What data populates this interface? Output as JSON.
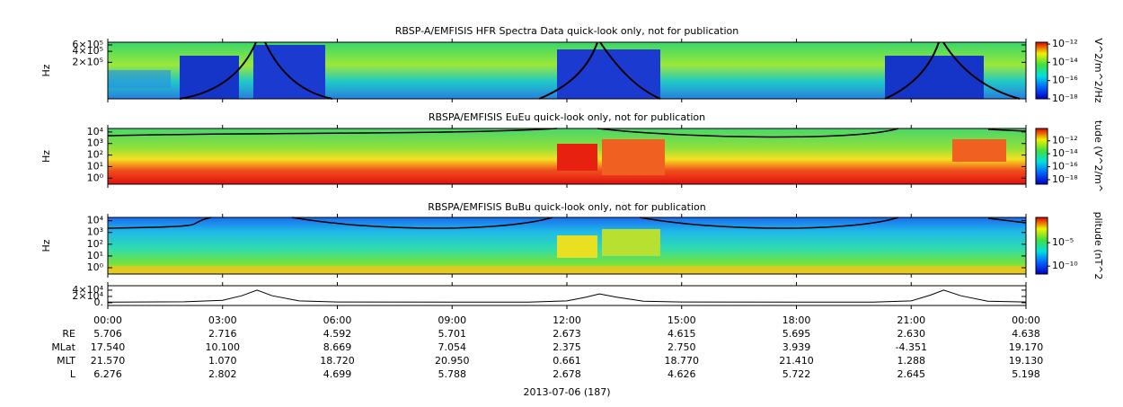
{
  "panels": [
    {
      "title": "RBSP-A/EMFISIS  HFR Spectra Data quick-look only, not for publication",
      "ylabel": "Hz",
      "log": true,
      "ylim": [
        20000,
        710000
      ],
      "yticks": [
        {
          "value": 600000,
          "label": "6×10⁵"
        },
        {
          "value": 400000,
          "label": "4×10⁵"
        },
        {
          "value": 200000,
          "label": "2×10⁵"
        }
      ],
      "colorbar": {
        "label": "V^2/m^2/Hz",
        "lim": [
          1e-18,
          1.6e-12
        ],
        "ticks": [
          {
            "value": 1e-12,
            "label": "10⁻¹²"
          },
          {
            "value": 1e-14,
            "label": "10⁻¹⁴"
          },
          {
            "value": 1e-16,
            "label": "10⁻¹⁶"
          },
          {
            "value": 1e-18,
            "label": "10⁻¹⁸"
          }
        ]
      }
    },
    {
      "title": "RBSPA/EMFISIS  EuEu quick-look only, not for publication",
      "ylabel": "Hz",
      "log": true,
      "ylim": [
        0.3,
        20000
      ],
      "yticks": [
        {
          "value": 10000,
          "label": "10⁴"
        },
        {
          "value": 1000,
          "label": "10³"
        },
        {
          "value": 100,
          "label": "10²"
        },
        {
          "value": 10,
          "label": "10¹"
        },
        {
          "value": 1,
          "label": "10⁰"
        }
      ],
      "colorbar": {
        "label": "tude (V^2/m^",
        "lim": [
          2e-19,
          8e-11
        ],
        "ticks": [
          {
            "value": 1e-12,
            "label": "10⁻¹²"
          },
          {
            "value": 1e-14,
            "label": "10⁻¹⁴"
          },
          {
            "value": 1e-16,
            "label": "10⁻¹⁶"
          },
          {
            "value": 1e-18,
            "label": "10⁻¹⁸"
          }
        ]
      }
    },
    {
      "title": "RBSPA/EMFISIS  BuBu quick-look only, not for publication",
      "ylabel": "Hz",
      "log": true,
      "ylim": [
        0.29,
        19000
      ],
      "yticks": [
        {
          "value": 10000,
          "label": "10⁴"
        },
        {
          "value": 1000,
          "label": "10³"
        },
        {
          "value": 100,
          "label": "10²"
        },
        {
          "value": 10,
          "label": "10¹"
        },
        {
          "value": 1,
          "label": "10⁰"
        }
      ],
      "colorbar": {
        "label": "plitude (nT^2",
        "lim": [
          2e-12,
          2.5
        ],
        "ticks": [
          {
            "value": 1e-05,
            "label": "10⁻⁵"
          },
          {
            "value": 1e-10,
            "label": "10⁻¹⁰"
          }
        ]
      }
    },
    {
      "log": false,
      "ylim": [
        -8600,
        54000
      ],
      "yticks": [
        {
          "value": 40000,
          "label": "4×10⁴"
        },
        {
          "value": 20000,
          "label": "2×10⁴"
        },
        {
          "value": 0,
          "label": "0."
        }
      ],
      "x": [
        0,
        2,
        3,
        3.5,
        3.9,
        4.3,
        5,
        6,
        11,
        12,
        12.5,
        12.85,
        13.3,
        14,
        15,
        20,
        21,
        21.5,
        21.85,
        22.3,
        23,
        24
      ],
      "values": [
        2000,
        3000,
        8000,
        22000,
        40000,
        22000,
        6000,
        2500,
        2000,
        6000,
        18000,
        28000,
        18000,
        5000,
        2500,
        2000,
        6000,
        24000,
        40000,
        22000,
        5000,
        2500
      ]
    }
  ],
  "xlim": [
    0,
    24
  ],
  "xticks": [
    {
      "value": 0,
      "label": "00:00"
    },
    {
      "value": 3,
      "label": "03:00"
    },
    {
      "value": 6,
      "label": "06:00"
    },
    {
      "value": 9,
      "label": "09:00"
    },
    {
      "value": 12,
      "label": "12:00"
    },
    {
      "value": 15,
      "label": "15:00"
    },
    {
      "value": 18,
      "label": "18:00"
    },
    {
      "value": 21,
      "label": "21:00"
    },
    {
      "value": 24,
      "label": "00:00"
    }
  ],
  "ephemeris": [
    {
      "label": "RE",
      "values": [
        "5.706",
        "2.716",
        "4.592",
        "5.701",
        "2.673",
        "4.615",
        "5.695",
        "2.630",
        "4.638"
      ]
    },
    {
      "label": "MLat",
      "values": [
        "17.540",
        "10.100",
        "8.669",
        "7.054",
        "2.375",
        "2.750",
        "3.939",
        "-4.351",
        "19.170"
      ]
    },
    {
      "label": "MLT",
      "values": [
        "21.570",
        "1.070",
        "18.720",
        "20.950",
        "0.661",
        "18.770",
        "21.410",
        "1.288",
        "19.130"
      ]
    },
    {
      "label": "L",
      "values": [
        "6.276",
        "2.802",
        "4.699",
        "5.788",
        "2.678",
        "4.626",
        "5.722",
        "2.645",
        "5.198"
      ]
    }
  ],
  "date": "2013-07-06 (187)"
}
